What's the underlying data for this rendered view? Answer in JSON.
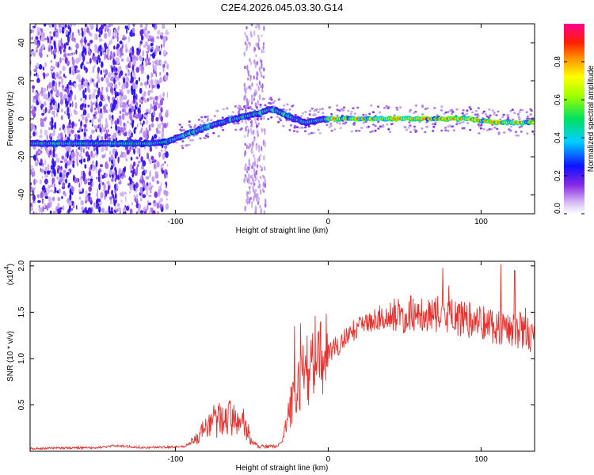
{
  "title": "C2E4.2026.045.03.30.G14",
  "chart_data": [
    {
      "type": "heatmap",
      "name": "spectrogram",
      "xlabel": "Height of straight line (km)",
      "ylabel": "Frequency (Hz)",
      "xlim": [
        -195,
        135
      ],
      "ylim": [
        -50,
        50
      ],
      "x_ticks": [
        {
          "value": -100,
          "label": "-100"
        },
        {
          "value": 0,
          "label": "0"
        },
        {
          "value": 100,
          "label": "100"
        }
      ],
      "y_ticks": [
        {
          "value": 40,
          "label": "40"
        },
        {
          "value": 20,
          "label": "20"
        },
        {
          "value": 0,
          "label": "0"
        },
        {
          "value": -20,
          "label": "-20"
        },
        {
          "value": -40,
          "label": "-40"
        }
      ],
      "colorbar": {
        "label": "Normalized spectral amplitude",
        "range": [
          0,
          1
        ],
        "ticks": [
          {
            "value": 0.0,
            "label": "0.0"
          },
          {
            "value": 0.2,
            "label": "0.2"
          },
          {
            "value": 0.4,
            "label": "0.4"
          },
          {
            "value": 0.6,
            "label": "0.6"
          },
          {
            "value": 0.8,
            "label": "0.8"
          }
        ]
      },
      "ridge": {
        "x": [
          -195,
          -160,
          -130,
          -115,
          -105,
          -95,
          -85,
          -75,
          -65,
          -55,
          -45,
          -38,
          -33,
          -28,
          -22,
          -15,
          -8,
          0,
          10,
          30,
          60,
          90,
          110,
          135
        ],
        "y": [
          -13,
          -13,
          -13,
          -13,
          -12,
          -9,
          -6,
          -3,
          -1,
          1,
          3,
          5,
          4,
          2,
          0,
          -2,
          -1,
          0,
          0,
          0,
          0,
          0,
          -2,
          -2
        ]
      }
    },
    {
      "type": "line",
      "name": "snr",
      "xlabel": "Height of straight line (km)",
      "ylabel": "SNR (10 * v/v)",
      "y_multiplier": "(x10",
      "y_multiplier_exp": "4",
      "xlim": [
        -195,
        135
      ],
      "ylim": [
        0,
        2.05
      ],
      "x_ticks": [
        {
          "value": -100,
          "label": "-100"
        },
        {
          "value": 0,
          "label": "0"
        },
        {
          "value": 100,
          "label": "100"
        }
      ],
      "y_ticks": [
        {
          "value": 0.5,
          "label": "0.5"
        },
        {
          "value": 1.0,
          "label": "1.0"
        },
        {
          "value": 1.5,
          "label": "1.5"
        },
        {
          "value": 2.0,
          "label": "2.0"
        }
      ],
      "color": "#e8302c",
      "envelope": {
        "x": [
          -195,
          -150,
          -140,
          -120,
          -95,
          -88,
          -85,
          -80,
          -75,
          -70,
          -65,
          -60,
          -55,
          -52,
          -50,
          -45,
          -35,
          -30,
          -28,
          -25,
          -22,
          -20,
          -18,
          -15,
          -10,
          -5,
          0,
          10,
          20,
          30,
          40,
          50,
          60,
          70,
          80,
          90,
          100,
          110,
          120,
          130,
          135
        ],
        "y": [
          0.03,
          0.04,
          0.06,
          0.04,
          0.05,
          0.1,
          0.15,
          0.25,
          0.3,
          0.35,
          0.38,
          0.32,
          0.3,
          0.2,
          0.1,
          0.05,
          0.05,
          0.1,
          0.25,
          0.45,
          0.6,
          0.7,
          0.8,
          0.85,
          0.95,
          1.0,
          1.05,
          1.2,
          1.35,
          1.42,
          1.45,
          1.47,
          1.5,
          1.48,
          1.45,
          1.42,
          1.4,
          1.35,
          1.32,
          1.28,
          1.25
        ]
      },
      "spikes": [
        {
          "x": -75,
          "y": 0.5
        },
        {
          "x": -65,
          "y": 0.52
        },
        {
          "x": -22,
          "y": 1.35
        },
        {
          "x": -18,
          "y": 1.38
        },
        {
          "x": 75,
          "y": 1.98
        },
        {
          "x": 113,
          "y": 2.02
        },
        {
          "x": 122,
          "y": 1.95
        }
      ]
    }
  ]
}
